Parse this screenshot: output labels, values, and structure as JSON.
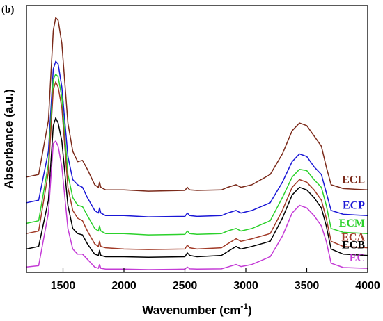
{
  "panel_label": "(b)",
  "chart_data": {
    "type": "line",
    "xlabel": "Wavenumber (cm",
    "xlabel_sup": "-1",
    "xlabel_end": ")",
    "ylabel": "Absorbance (a.u.)",
    "xlim": [
      1200,
      4000
    ],
    "xticks": [
      1500,
      2000,
      2500,
      3000,
      3500,
      4000
    ],
    "xtick_labels": [
      "1500",
      "2000",
      "2500",
      "3000",
      "3500",
      "4000"
    ],
    "ylim": [
      0,
      10
    ],
    "y_ticks_shown": false,
    "grid": false,
    "legend": "inline labels at right",
    "baseline_points_x": [
      1200,
      1300,
      1380,
      1420,
      1440,
      1460,
      1490,
      1540,
      1580,
      1620,
      1660,
      1700,
      1760,
      1790,
      1800,
      1810,
      1850,
      2000,
      2200,
      2500,
      2520,
      2540,
      2600,
      2800,
      2850,
      2920,
      2960,
      3050,
      3200,
      3300,
      3380,
      3440,
      3500,
      3560,
      3620,
      3660,
      3700,
      3800,
      4000
    ],
    "series": [
      {
        "name": "ECL",
        "color": "#7b2a1a",
        "y": [
          3.6,
          3.7,
          5.8,
          9.3,
          9.8,
          9.7,
          8.8,
          5.7,
          4.6,
          4.2,
          4.25,
          3.9,
          3.3,
          3.2,
          3.4,
          3.2,
          3.1,
          3.1,
          3.05,
          3.08,
          3.2,
          3.1,
          3.08,
          3.1,
          3.2,
          3.3,
          3.2,
          3.3,
          3.7,
          4.5,
          5.4,
          5.7,
          5.6,
          5.2,
          4.8,
          4.0,
          3.3,
          3.15,
          3.1
        ]
      },
      {
        "name": "ECP",
        "color": "#1a17d6",
        "y": [
          2.6,
          2.7,
          4.6,
          7.8,
          8.1,
          8.0,
          7.1,
          4.4,
          3.5,
          3.3,
          3.2,
          2.8,
          2.3,
          2.2,
          2.4,
          2.2,
          2.1,
          2.1,
          2.05,
          2.07,
          2.2,
          2.1,
          2.07,
          2.1,
          2.2,
          2.3,
          2.2,
          2.3,
          2.6,
          3.4,
          4.2,
          4.5,
          4.4,
          4.0,
          3.7,
          3.0,
          2.3,
          2.15,
          2.1
        ]
      },
      {
        "name": "ECM",
        "color": "#2bd12b",
        "y": [
          1.8,
          1.9,
          4.1,
          7.4,
          7.6,
          7.5,
          6.7,
          3.7,
          2.8,
          2.5,
          2.45,
          2.1,
          1.6,
          1.5,
          1.7,
          1.5,
          1.4,
          1.4,
          1.35,
          1.37,
          1.5,
          1.4,
          1.37,
          1.4,
          1.5,
          1.6,
          1.5,
          1.6,
          1.9,
          2.8,
          3.6,
          3.9,
          3.85,
          3.5,
          3.2,
          2.5,
          1.6,
          1.45,
          1.4
        ]
      },
      {
        "name": "ECA",
        "color": "#a13a27",
        "y": [
          1.4,
          1.5,
          3.8,
          7.0,
          7.3,
          7.1,
          6.3,
          3.2,
          2.3,
          2.0,
          1.9,
          1.5,
          1.0,
          0.9,
          1.1,
          0.9,
          0.85,
          0.8,
          0.78,
          0.8,
          0.95,
          0.85,
          0.8,
          0.85,
          1.0,
          1.2,
          1.1,
          1.2,
          1.4,
          2.3,
          3.2,
          3.5,
          3.4,
          3.1,
          2.7,
          2.0,
          1.1,
          0.9,
          0.85
        ]
      },
      {
        "name": "ECB",
        "color": "#000000",
        "y": [
          0.8,
          0.9,
          2.7,
          5.6,
          5.9,
          5.7,
          5.0,
          2.5,
          1.6,
          1.4,
          1.35,
          1.0,
          0.6,
          0.55,
          0.75,
          0.55,
          0.5,
          0.5,
          0.48,
          0.5,
          0.65,
          0.55,
          0.5,
          0.55,
          0.7,
          0.9,
          0.8,
          0.9,
          1.1,
          2.0,
          2.9,
          3.2,
          3.1,
          2.8,
          2.4,
          1.7,
          0.8,
          0.6,
          0.55
        ]
      },
      {
        "name": "EC",
        "color": "#c43bd6",
        "y": [
          0.1,
          0.15,
          2.2,
          4.9,
          5.0,
          4.8,
          4.0,
          1.6,
          0.8,
          0.6,
          0.6,
          0.4,
          0.1,
          0.05,
          0.2,
          0.05,
          0.02,
          0.02,
          0.0,
          0.02,
          0.1,
          0.03,
          0.02,
          0.03,
          0.1,
          0.2,
          0.12,
          0.2,
          0.5,
          1.3,
          2.2,
          2.5,
          2.4,
          2.1,
          1.7,
          1.1,
          0.25,
          0.08,
          0.05
        ]
      }
    ]
  }
}
